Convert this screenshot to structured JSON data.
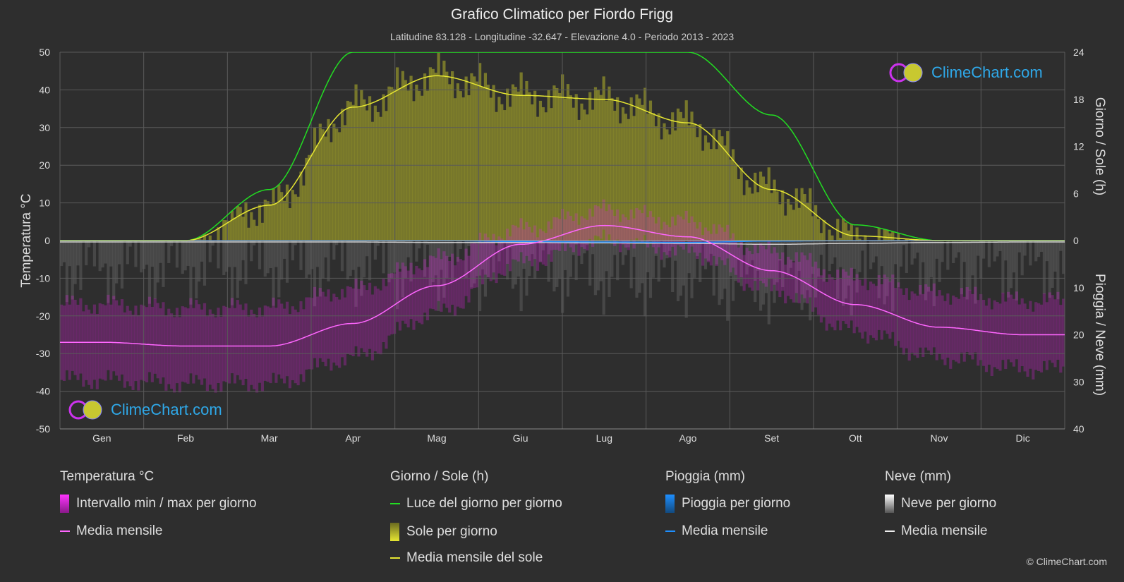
{
  "title": "Grafico Climatico per Fiordo Frigg",
  "subtitle": "Latitudine 83.128 - Longitudine -32.647 - Elevazione 4.0 - Periodo 2013 - 2023",
  "logo_text": "ClimeChart.com",
  "copyright": "© ClimeChart.com",
  "colors": {
    "background": "#2e2e2e",
    "temp_range": "#e020e0",
    "temp_mean": "#ff66ff",
    "daylight": "#22dd22",
    "sun_fill": "#b5b52a",
    "sun_mean": "#e6e632",
    "rain": "#1e8fff",
    "snow": "#cfcfcf",
    "snow_mean": "#eeeeee",
    "logo_text": "#2fa8e8"
  },
  "legend": {
    "temperature": {
      "header": "Temperatura °C",
      "range_label": "Intervallo min / max per giorno",
      "mean_label": "Media mensile"
    },
    "sun": {
      "header": "Giorno / Sole (h)",
      "daylight_label": "Luce del giorno per giorno",
      "sun_label": "Sole per giorno",
      "mean_label": "Media mensile del sole"
    },
    "rain": {
      "header": "Pioggia (mm)",
      "rain_label": "Pioggia per giorno",
      "mean_label": "Media mensile"
    },
    "snow": {
      "header": "Neve (mm)",
      "snow_label": "Neve per giorno",
      "mean_label": "Media mensile"
    }
  },
  "chart_data": {
    "type": "line",
    "months": [
      "Gen",
      "Feb",
      "Mar",
      "Apr",
      "Mag",
      "Giu",
      "Lug",
      "Ago",
      "Set",
      "Ott",
      "Nov",
      "Dic"
    ],
    "axes": {
      "left": {
        "label": "Temperatura °C",
        "range": [
          -50,
          50
        ],
        "ticks": [
          50,
          40,
          30,
          20,
          10,
          0,
          -10,
          -20,
          -30,
          -40,
          -50
        ]
      },
      "right_top": {
        "label": "Giorno / Sole (h)",
        "range": [
          0,
          24
        ],
        "ticks": [
          24,
          18,
          12,
          6,
          0
        ]
      },
      "right_bottom": {
        "label": "Pioggia / Neve (mm)",
        "range": [
          0,
          40
        ],
        "ticks": [
          10,
          20,
          30,
          40
        ]
      }
    },
    "grid": true,
    "series": [
      {
        "name": "Media mensile",
        "group": "Temperatura °C",
        "axis": "left",
        "values": [
          -27,
          -28,
          -28,
          -22,
          -12,
          -1,
          4,
          1,
          -8,
          -17,
          -23,
          -25
        ]
      },
      {
        "name": "Intervallo min / max per giorno",
        "group": "Temperatura °C",
        "axis": "left",
        "min": [
          -37,
          -38,
          -38,
          -31,
          -19,
          -6,
          0,
          -3,
          -13,
          -24,
          -31,
          -34
        ],
        "max": [
          -17,
          -18,
          -18,
          -13,
          -5,
          3,
          8,
          5,
          -3,
          -10,
          -14,
          -16
        ]
      },
      {
        "name": "Luce del giorno per giorno",
        "group": "Giorno / Sole (h)",
        "axis": "right_top",
        "values": [
          0,
          0,
          6.5,
          24,
          24,
          24,
          24,
          24,
          16,
          2,
          0,
          0
        ]
      },
      {
        "name": "Media mensile del sole",
        "group": "Giorno / Sole (h)",
        "axis": "right_top",
        "values": [
          0,
          0,
          4.5,
          17,
          21,
          18.5,
          18,
          15,
          6.5,
          0.6,
          0,
          0
        ]
      },
      {
        "name": "Pioggia - Media mensile",
        "group": "Pioggia (mm)",
        "axis": "right_bottom",
        "values": [
          0,
          0,
          0,
          0,
          0,
          0.2,
          0.3,
          0.4,
          0.1,
          0,
          0,
          0
        ]
      },
      {
        "name": "Neve - Media mensile",
        "group": "Neve (mm)",
        "axis": "right_bottom",
        "values": [
          0.3,
          0.3,
          0.3,
          0.3,
          0.4,
          0.4,
          0.5,
          0.6,
          0.8,
          0.6,
          0.4,
          0.3
        ]
      }
    ]
  }
}
